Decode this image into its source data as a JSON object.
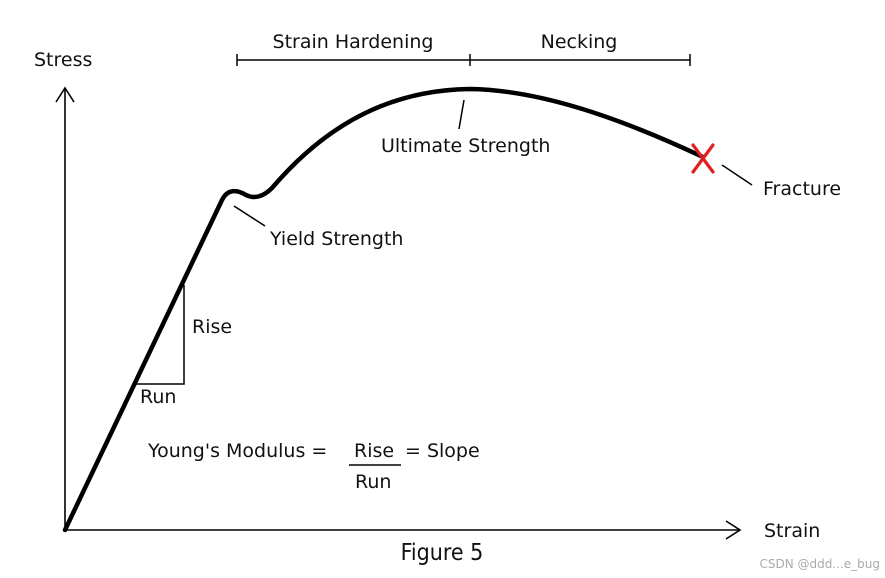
{
  "axes": {
    "y_label": "Stress",
    "x_label": "Strain"
  },
  "regions": {
    "strain_hardening": "Strain Hardening",
    "necking": "Necking"
  },
  "points": {
    "ultimate_strength": "Ultimate Strength",
    "yield_strength": "Yield Strength",
    "fracture": "Fracture"
  },
  "slope_triangle": {
    "rise": "Rise",
    "run": "Run"
  },
  "formula": {
    "lhs": "Young's Modulus =",
    "numerator": "Rise",
    "denominator": "Run",
    "rhs": "= Slope"
  },
  "caption": "Figure 5",
  "watermark": "CSDN @ddd...e_bug",
  "colors": {
    "curve": "#000000",
    "fracture_marker": "#e02020"
  }
}
